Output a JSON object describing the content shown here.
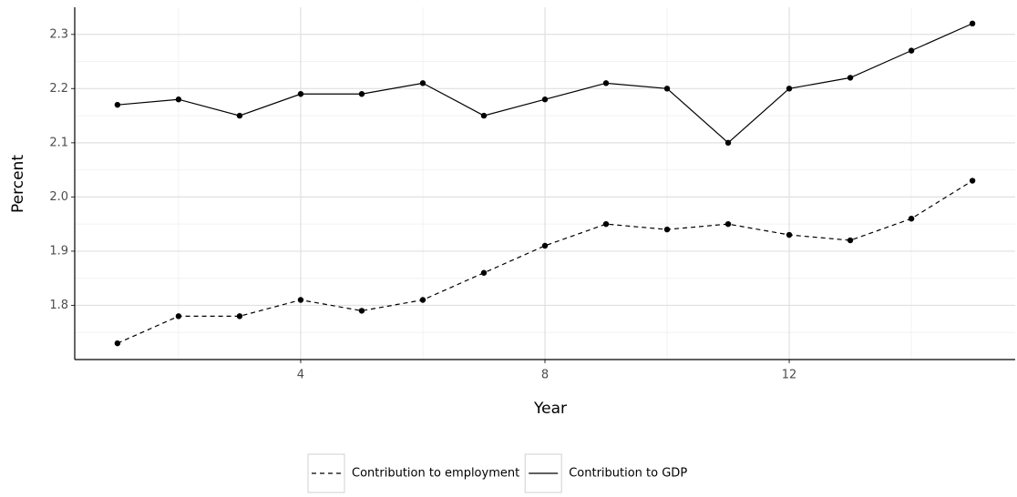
{
  "chart_data": {
    "type": "line",
    "x": [
      1,
      2,
      3,
      4,
      5,
      6,
      7,
      8,
      9,
      10,
      11,
      12,
      13,
      14,
      15
    ],
    "series": [
      {
        "name": "Contribution to employment",
        "color": "#000000",
        "dash": true,
        "values": [
          1.73,
          1.78,
          1.78,
          1.81,
          1.79,
          1.81,
          1.86,
          1.91,
          1.95,
          1.94,
          1.95,
          1.93,
          1.92,
          1.96,
          2.03
        ]
      },
      {
        "name": "Contribution to GDP",
        "color": "#000000",
        "dash": false,
        "values": [
          2.17,
          2.18,
          2.15,
          2.19,
          2.19,
          2.21,
          2.15,
          2.18,
          2.21,
          2.2,
          2.1,
          2.2,
          2.22,
          2.27,
          2.32
        ]
      }
    ],
    "xlabel": "Year",
    "ylabel": "Percent",
    "xlim": [
      0.3,
      15.7
    ],
    "ylim": [
      1.7,
      2.35
    ],
    "xticks": [
      4,
      8,
      12
    ],
    "yticks": [
      {
        "value": 1.8,
        "label": "1.8"
      },
      {
        "value": 1.9,
        "label": "1.9"
      },
      {
        "value": 2.0,
        "label": "2.0"
      },
      {
        "value": 2.1,
        "label": "2.1"
      },
      {
        "value": 2.2,
        "label": "2.2"
      },
      {
        "value": 2.3,
        "label": "2.3"
      }
    ],
    "xminor": [
      2,
      6,
      10,
      14
    ],
    "yminor": [
      1.75,
      1.85,
      1.95,
      2.05,
      2.15,
      2.25
    ],
    "grid": true,
    "legend": "bottom"
  }
}
